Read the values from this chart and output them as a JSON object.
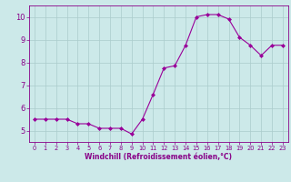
{
  "x": [
    0,
    1,
    2,
    3,
    4,
    5,
    6,
    7,
    8,
    9,
    10,
    11,
    12,
    13,
    14,
    15,
    16,
    17,
    18,
    19,
    20,
    21,
    22,
    23
  ],
  "y": [
    5.5,
    5.5,
    5.5,
    5.5,
    5.3,
    5.3,
    5.1,
    5.1,
    5.1,
    4.85,
    5.5,
    6.6,
    7.75,
    7.85,
    8.75,
    10.0,
    10.1,
    10.1,
    9.9,
    9.1,
    8.75,
    8.3,
    8.75,
    8.75
  ],
  "line_color": "#990099",
  "marker": "D",
  "marker_size": 2,
  "bg_color": "#cce9e9",
  "grid_color": "#aacccc",
  "xlabel": "Windchill (Refroidissement éolien,°C)",
  "xlim": [
    -0.5,
    23.5
  ],
  "ylim": [
    4.5,
    10.5
  ],
  "yticks": [
    5,
    6,
    7,
    8,
    9,
    10
  ],
  "xticks": [
    0,
    1,
    2,
    3,
    4,
    5,
    6,
    7,
    8,
    9,
    10,
    11,
    12,
    13,
    14,
    15,
    16,
    17,
    18,
    19,
    20,
    21,
    22,
    23
  ],
  "xlabel_fontsize": 5.5,
  "ytick_fontsize": 6,
  "xtick_fontsize": 4.8,
  "label_color": "#880088"
}
